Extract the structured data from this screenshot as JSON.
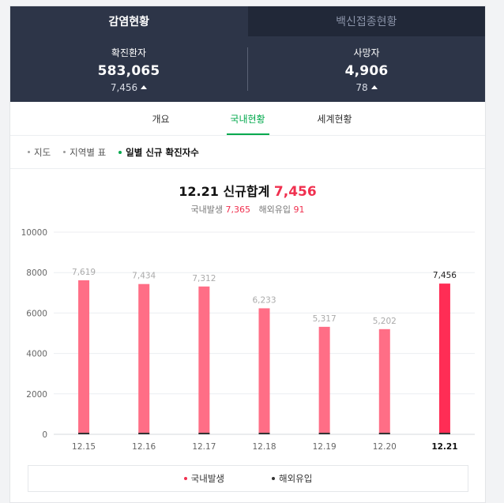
{
  "tabs": [
    {
      "label": "감염현황",
      "active": true
    },
    {
      "label": "백신접종현황",
      "active": false
    }
  ],
  "stats": [
    {
      "label": "확진환자",
      "value": "583,065",
      "delta": "7,456"
    },
    {
      "label": "사망자",
      "value": "4,906",
      "delta": "78"
    }
  ],
  "subtabs": [
    {
      "label": "개요",
      "active": false
    },
    {
      "label": "국내현황",
      "active": true
    },
    {
      "label": "세계현황",
      "active": false
    }
  ],
  "filters": [
    {
      "label": "지도",
      "active": false
    },
    {
      "label": "지역별 표",
      "active": false
    },
    {
      "label": "일별 신규 확진자수",
      "active": true
    }
  ],
  "headline": {
    "prefix": "12.21 신규합계",
    "total": "7,456"
  },
  "subline": {
    "domestic_label": "국내발생",
    "domestic_value": "7,365",
    "overseas_label": "해외유입",
    "overseas_value": "91"
  },
  "legend": [
    {
      "label": "국내발생",
      "color": "#f0304f"
    },
    {
      "label": "해외유입",
      "color": "#333333"
    }
  ],
  "colors": {
    "accent": "#03a94d",
    "bar": "#ff6e86",
    "bar_highlight": "#ff2d55",
    "overseas": "#333333",
    "header_bg": "#2d3548"
  },
  "chart_data": {
    "type": "bar",
    "categories": [
      "12.15",
      "12.16",
      "12.17",
      "12.18",
      "12.19",
      "12.20",
      "12.21"
    ],
    "totals": [
      7619,
      7434,
      7312,
      6233,
      5317,
      5202,
      7456
    ],
    "total_labels": [
      "7,619",
      "7,434",
      "7,312",
      "6,233",
      "5,317",
      "5,202",
      "7,456"
    ],
    "yticks": [
      0,
      2000,
      4000,
      6000,
      8000,
      10000
    ],
    "ylim": [
      0,
      10000
    ],
    "highlight_index": 6,
    "grid": true
  }
}
